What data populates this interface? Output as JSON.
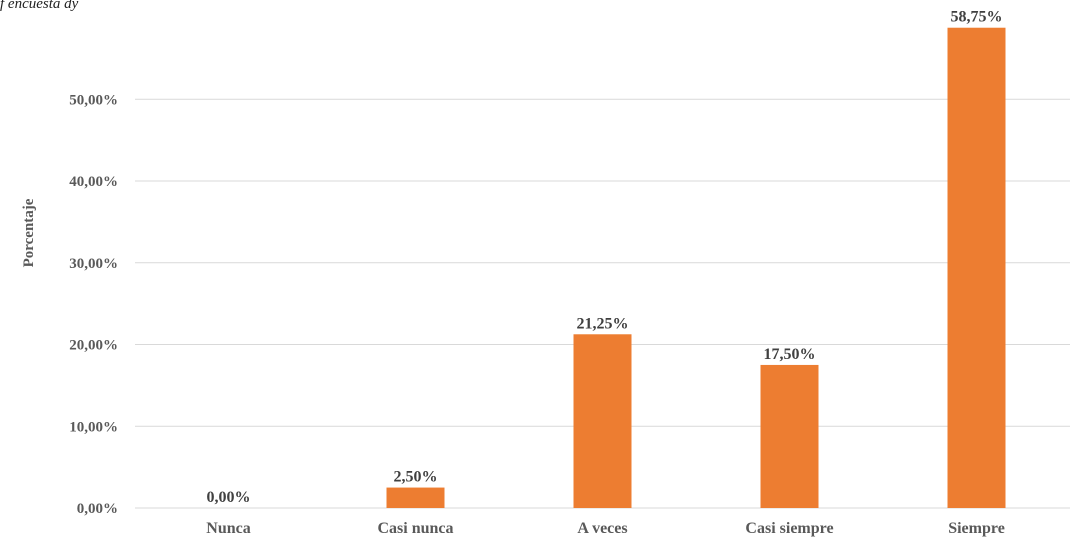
{
  "caption": "f encuesta dy",
  "colors": {
    "bar": "#ED7D31",
    "grid": "#D9D9D9",
    "text": "#595959",
    "label": "#404040"
  },
  "chart_data": {
    "type": "bar",
    "categories": [
      "Nunca",
      "Casi nunca",
      "A veces",
      "Casi siempre",
      "Siempre"
    ],
    "values": [
      0.0,
      2.5,
      21.25,
      17.5,
      58.75
    ],
    "value_labels": [
      "0,00%",
      "2,50%",
      "21,25%",
      "17,50%",
      "58,75%"
    ],
    "ylabel": "Porcentaje",
    "xlabel": "",
    "ylim": [
      0,
      60
    ],
    "yticks": [
      0,
      10,
      20,
      30,
      40,
      50
    ],
    "ytick_labels": [
      "0,00%",
      "10,00%",
      "20,00%",
      "30,00%",
      "40,00%",
      "50,00%"
    ],
    "grid": true,
    "legend": "none"
  }
}
